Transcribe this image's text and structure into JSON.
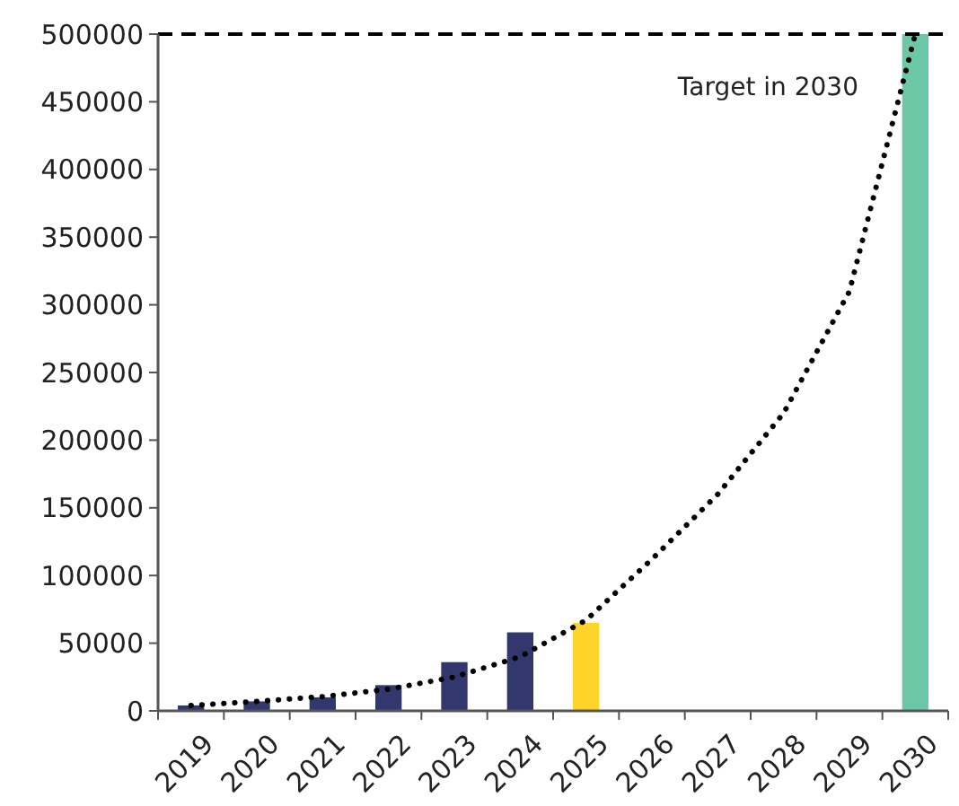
{
  "chart_data": {
    "type": "bar",
    "categories": [
      "2019",
      "2020",
      "2021",
      "2022",
      "2023",
      "2024",
      "2025",
      "2026",
      "2027",
      "2028",
      "2029",
      "2030"
    ],
    "series": [
      {
        "colors": [
          "#32386e",
          "#32386e",
          "#32386e",
          "#32386e",
          "#32386e",
          "#32386e",
          "#ffd42a",
          null,
          null,
          null,
          null,
          "#6cc7a6"
        ],
        "values": [
          4000,
          7000,
          10000,
          19000,
          36000,
          58000,
          65000,
          null,
          null,
          null,
          null,
          500000
        ]
      },
      {
        "type": "line",
        "color": "#000000",
        "line_style": "dotted",
        "marker": "none",
        "values": [
          4000,
          7000,
          10500,
          16000,
          25000,
          40000,
          67000,
          112000,
          160000,
          220000,
          310000,
          500000
        ]
      }
    ],
    "ylim": [
      0,
      500000
    ],
    "yticks": [
      0,
      50000,
      100000,
      150000,
      200000,
      250000,
      300000,
      350000,
      400000,
      450000,
      500000
    ],
    "grid": false,
    "ref_lines": [
      {
        "axis": "y",
        "value": 500000,
        "label": "Target in 2030",
        "color": "#000000",
        "line_style": "dashed"
      }
    ]
  }
}
